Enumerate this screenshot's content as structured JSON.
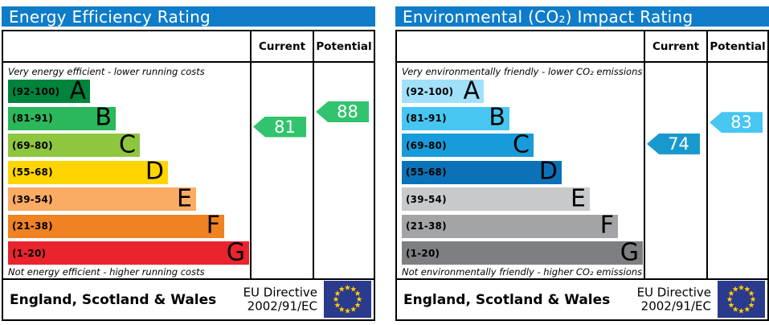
{
  "theme": {
    "header_bg": "#0e7cc8",
    "eu_flag_bg": "#2a3a8c",
    "eu_flag_star": "#ffcc00",
    "border": "#000000"
  },
  "charts": [
    {
      "title": "Energy Efficiency Rating",
      "columns": {
        "current": "Current",
        "potential": "Potential"
      },
      "top_note": "Very energy efficient - lower running costs",
      "bottom_note": "Not energy efficient - higher running costs",
      "bands": [
        {
          "letter": "A",
          "range": "(92-100)",
          "lo": 92,
          "hi": 100,
          "color": "#00843d"
        },
        {
          "letter": "B",
          "range": "(81-91)",
          "lo": 81,
          "hi": 91,
          "color": "#2bb75b"
        },
        {
          "letter": "C",
          "range": "(69-80)",
          "lo": 69,
          "hi": 80,
          "color": "#8ec63f"
        },
        {
          "letter": "D",
          "range": "(55-68)",
          "lo": 55,
          "hi": 68,
          "color": "#ffd500"
        },
        {
          "letter": "E",
          "range": "(39-54)",
          "lo": 39,
          "hi": 54,
          "color": "#fbab64"
        },
        {
          "letter": "F",
          "range": "(21-38)",
          "lo": 21,
          "hi": 38,
          "color": "#ef8223"
        },
        {
          "letter": "G",
          "range": "(1-20)",
          "lo": 1,
          "hi": 20,
          "color": "#e9242d"
        }
      ],
      "current": {
        "value": 81,
        "color": "#32c36e"
      },
      "potential": {
        "value": 88,
        "color": "#32c36e"
      },
      "footer": {
        "region": "England, Scotland & Wales",
        "directive_line1": "EU Directive",
        "directive_line2": "2002/91/EC"
      }
    },
    {
      "title": "Environmental (CO₂) Impact Rating",
      "columns": {
        "current": "Current",
        "potential": "Potential"
      },
      "top_note": "Very environmentally friendly - lower CO₂ emissions",
      "bottom_note": "Not environmentally friendly - higher CO₂ emissions",
      "bands": [
        {
          "letter": "A",
          "range": "(92-100)",
          "lo": 92,
          "hi": 100,
          "color": "#a1e0f9"
        },
        {
          "letter": "B",
          "range": "(81-91)",
          "lo": 81,
          "hi": 91,
          "color": "#47c6f2"
        },
        {
          "letter": "C",
          "range": "(69-80)",
          "lo": 69,
          "hi": 80,
          "color": "#189cd9"
        },
        {
          "letter": "D",
          "range": "(55-68)",
          "lo": 55,
          "hi": 68,
          "color": "#0c72b8"
        },
        {
          "letter": "E",
          "range": "(39-54)",
          "lo": 39,
          "hi": 54,
          "color": "#c8c9cb"
        },
        {
          "letter": "F",
          "range": "(21-38)",
          "lo": 21,
          "hi": 38,
          "color": "#a3a4a8"
        },
        {
          "letter": "G",
          "range": "(1-20)",
          "lo": 1,
          "hi": 20,
          "color": "#7d7f83"
        }
      ],
      "current": {
        "value": 74,
        "color": "#1899ce"
      },
      "potential": {
        "value": 83,
        "color": "#47c6f2"
      },
      "footer": {
        "region": "England, Scotland & Wales",
        "directive_line1": "EU Directive",
        "directive_line2": "2002/91/EC"
      }
    }
  ],
  "chart_data": [
    {
      "type": "bar",
      "orientation": "horizontal",
      "title": "Energy Efficiency Rating",
      "categories": [
        "A (92-100)",
        "B (81-91)",
        "C (69-80)",
        "D (55-68)",
        "E (39-54)",
        "F (21-38)",
        "G (1-20)"
      ],
      "values": [
        100,
        91,
        80,
        68,
        54,
        38,
        20
      ],
      "bar_colors": [
        "#00843d",
        "#2bb75b",
        "#8ec63f",
        "#ffd500",
        "#fbab64",
        "#ef8223",
        "#e9242d"
      ],
      "markers": [
        {
          "label": "Current",
          "value": 81,
          "band": "B"
        },
        {
          "label": "Potential",
          "value": 88,
          "band": "B"
        }
      ],
      "annotations": [
        "Very energy efficient - lower running costs",
        "Not energy efficient - higher running costs",
        "England, Scotland & Wales",
        "EU Directive 2002/91/EC"
      ]
    },
    {
      "type": "bar",
      "orientation": "horizontal",
      "title": "Environmental (CO₂) Impact Rating",
      "categories": [
        "A (92-100)",
        "B (81-91)",
        "C (69-80)",
        "D (55-68)",
        "E (39-54)",
        "F (21-38)",
        "G (1-20)"
      ],
      "values": [
        100,
        91,
        80,
        68,
        54,
        38,
        20
      ],
      "bar_colors": [
        "#a1e0f9",
        "#47c6f2",
        "#189cd9",
        "#0c72b8",
        "#c8c9cb",
        "#a3a4a8",
        "#7d7f83"
      ],
      "markers": [
        {
          "label": "Current",
          "value": 74,
          "band": "C"
        },
        {
          "label": "Potential",
          "value": 83,
          "band": "B"
        }
      ],
      "annotations": [
        "Very environmentally friendly - lower CO₂ emissions",
        "Not environmentally friendly - higher CO₂ emissions",
        "England, Scotland & Wales",
        "EU Directive 2002/91/EC"
      ]
    }
  ]
}
